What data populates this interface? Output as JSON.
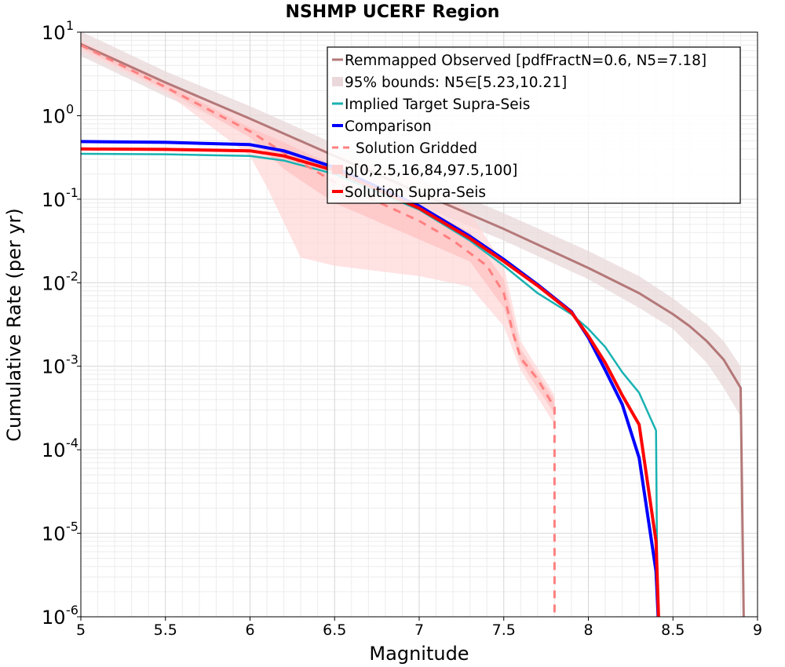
{
  "chart_data": {
    "type": "line",
    "title": "NSHMP UCERF Region",
    "xlabel": "Magnitude",
    "ylabel": "Cumulative Rate (per yr)",
    "xlim": [
      5,
      9
    ],
    "ylim": [
      1e-06,
      10
    ],
    "yscale": "log",
    "grid": true,
    "legend_position": "top-right",
    "x_ticks": [
      "5",
      "5.5",
      "6",
      "6.5",
      "7",
      "7.5",
      "8",
      "8.5",
      "9"
    ],
    "y_ticks": [
      {
        "base": "10",
        "exp": "-6"
      },
      {
        "base": "10",
        "exp": "-5"
      },
      {
        "base": "10",
        "exp": "-4"
      },
      {
        "base": "10",
        "exp": "-3"
      },
      {
        "base": "10",
        "exp": "-2"
      },
      {
        "base": "10",
        "exp": "-1"
      },
      {
        "base": "10",
        "exp": "0"
      },
      {
        "base": "10",
        "exp": "1"
      }
    ],
    "legend": [
      {
        "label": "Remmapped Observed [pdfFractN=0.6, N5=7.18]",
        "kind": "line",
        "color": "#b47878"
      },
      {
        "label": "95% bounds: N5∈[5.23,10.21]",
        "kind": "band",
        "color": "#ead8da"
      },
      {
        "label": "Implied Target Supra-Seis",
        "kind": "line",
        "color": "#19b2b2"
      },
      {
        "label": "Comparison",
        "kind": "thick-line",
        "color": "#0000ff"
      },
      {
        "label": "Solution Gridded",
        "kind": "dashed",
        "color": "#ff8080"
      },
      {
        "label": "p[0,2.5,16,84,97.5,100]",
        "kind": "band",
        "color": "#ffd0d0"
      },
      {
        "label": "Solution Supra-Seis",
        "kind": "thick-line",
        "color": "#ff0000"
      }
    ],
    "bands": [
      {
        "name": "95% bounds",
        "color": "#ead8da",
        "opacity": 0.75,
        "x": [
          5.0,
          5.5,
          6.0,
          6.5,
          7.0,
          7.5,
          8.0,
          8.3,
          8.5,
          8.7,
          8.8,
          8.9
        ],
        "lower": [
          5.2,
          1.7,
          0.62,
          0.22,
          0.085,
          0.032,
          0.011,
          0.005,
          0.0028,
          0.0011,
          0.00055,
          0.00025
        ],
        "upper": [
          10.2,
          3.4,
          1.3,
          0.46,
          0.18,
          0.068,
          0.024,
          0.012,
          0.0065,
          0.0032,
          0.002,
          0.001
        ]
      },
      {
        "name": "Solution Gridded outer",
        "color": "#ffd6d6",
        "opacity": 0.7,
        "x": [
          5.0,
          5.5,
          6.0,
          6.1,
          6.3,
          6.5,
          7.0,
          7.3,
          7.5,
          7.6,
          7.8
        ],
        "lower": [
          6.0,
          1.9,
          0.33,
          0.14,
          0.02,
          0.016,
          0.012,
          0.009,
          0.003,
          0.0009,
          0.0002
        ],
        "upper": [
          8.0,
          2.6,
          0.9,
          0.72,
          0.5,
          0.36,
          0.18,
          0.07,
          0.016,
          0.002,
          0.00045
        ]
      },
      {
        "name": "Solution Gridded inner",
        "color": "#ffc0c0",
        "opacity": 0.7,
        "x": [
          5.0,
          5.5,
          6.0,
          6.2,
          6.5,
          7.0,
          7.3,
          7.5,
          7.6,
          7.8
        ],
        "lower": [
          6.5,
          2.05,
          0.55,
          0.23,
          0.09,
          0.033,
          0.018,
          0.005,
          0.0011,
          0.00027
        ],
        "upper": [
          7.5,
          2.45,
          0.72,
          0.48,
          0.25,
          0.085,
          0.04,
          0.011,
          0.0016,
          0.0004
        ]
      }
    ],
    "series": [
      {
        "name": "Remmapped Observed [pdfFractN=0.6, N5=7.18]",
        "color": "#b47878",
        "width": 3,
        "dash": "",
        "x": [
          5.0,
          5.5,
          6.0,
          6.5,
          7.0,
          7.5,
          8.0,
          8.3,
          8.5,
          8.6,
          8.7,
          8.8,
          8.9,
          8.92
        ],
        "y": [
          7.18,
          2.5,
          0.92,
          0.33,
          0.12,
          0.044,
          0.015,
          0.0075,
          0.0042,
          0.003,
          0.002,
          0.0012,
          0.00055,
          5e-07
        ]
      },
      {
        "name": "Implied Target Supra-Seis",
        "color": "#19b2b2",
        "width": 2.5,
        "dash": "",
        "x": [
          5.0,
          5.5,
          6.0,
          6.2,
          6.5,
          7.0,
          7.3,
          7.5,
          7.7,
          7.9,
          8.0,
          8.1,
          8.2,
          8.3,
          8.4,
          8.41
        ],
        "y": [
          0.35,
          0.345,
          0.33,
          0.29,
          0.2,
          0.075,
          0.032,
          0.016,
          0.0075,
          0.0042,
          0.0028,
          0.0017,
          0.00085,
          0.00048,
          0.00017,
          5e-07
        ]
      },
      {
        "name": "Solution Gridded",
        "color": "#ff8080",
        "width": 3,
        "dash": "10,8",
        "x": [
          5.0,
          5.5,
          6.0,
          6.2,
          6.5,
          7.0,
          7.2,
          7.4,
          7.5,
          7.55,
          7.6,
          7.7,
          7.8,
          7.8
        ],
        "y": [
          7.0,
          2.2,
          0.65,
          0.36,
          0.16,
          0.055,
          0.032,
          0.016,
          0.0075,
          0.0027,
          0.00125,
          0.0007,
          0.00032,
          5e-07
        ]
      },
      {
        "name": "Comparison",
        "color": "#0000ff",
        "width": 4,
        "dash": "",
        "x": [
          5.0,
          5.5,
          6.0,
          6.2,
          6.5,
          7.0,
          7.3,
          7.5,
          7.7,
          7.9,
          8.0,
          8.1,
          8.2,
          8.3,
          8.4,
          8.42
        ],
        "y": [
          0.49,
          0.48,
          0.45,
          0.38,
          0.24,
          0.083,
          0.036,
          0.019,
          0.0095,
          0.0045,
          0.0022,
          0.0009,
          0.00035,
          8e-05,
          3.5e-06,
          5e-07
        ]
      },
      {
        "name": "Solution Supra-Seis",
        "color": "#ff0000",
        "width": 4,
        "dash": "",
        "x": [
          5.0,
          5.5,
          6.0,
          6.2,
          6.5,
          7.0,
          7.3,
          7.5,
          7.7,
          7.9,
          8.0,
          8.1,
          8.2,
          8.3,
          8.4,
          8.42
        ],
        "y": [
          0.4,
          0.395,
          0.38,
          0.33,
          0.22,
          0.078,
          0.034,
          0.018,
          0.0092,
          0.0044,
          0.0023,
          0.0011,
          0.00045,
          0.0002,
          8e-06,
          5e-07
        ]
      }
    ]
  }
}
